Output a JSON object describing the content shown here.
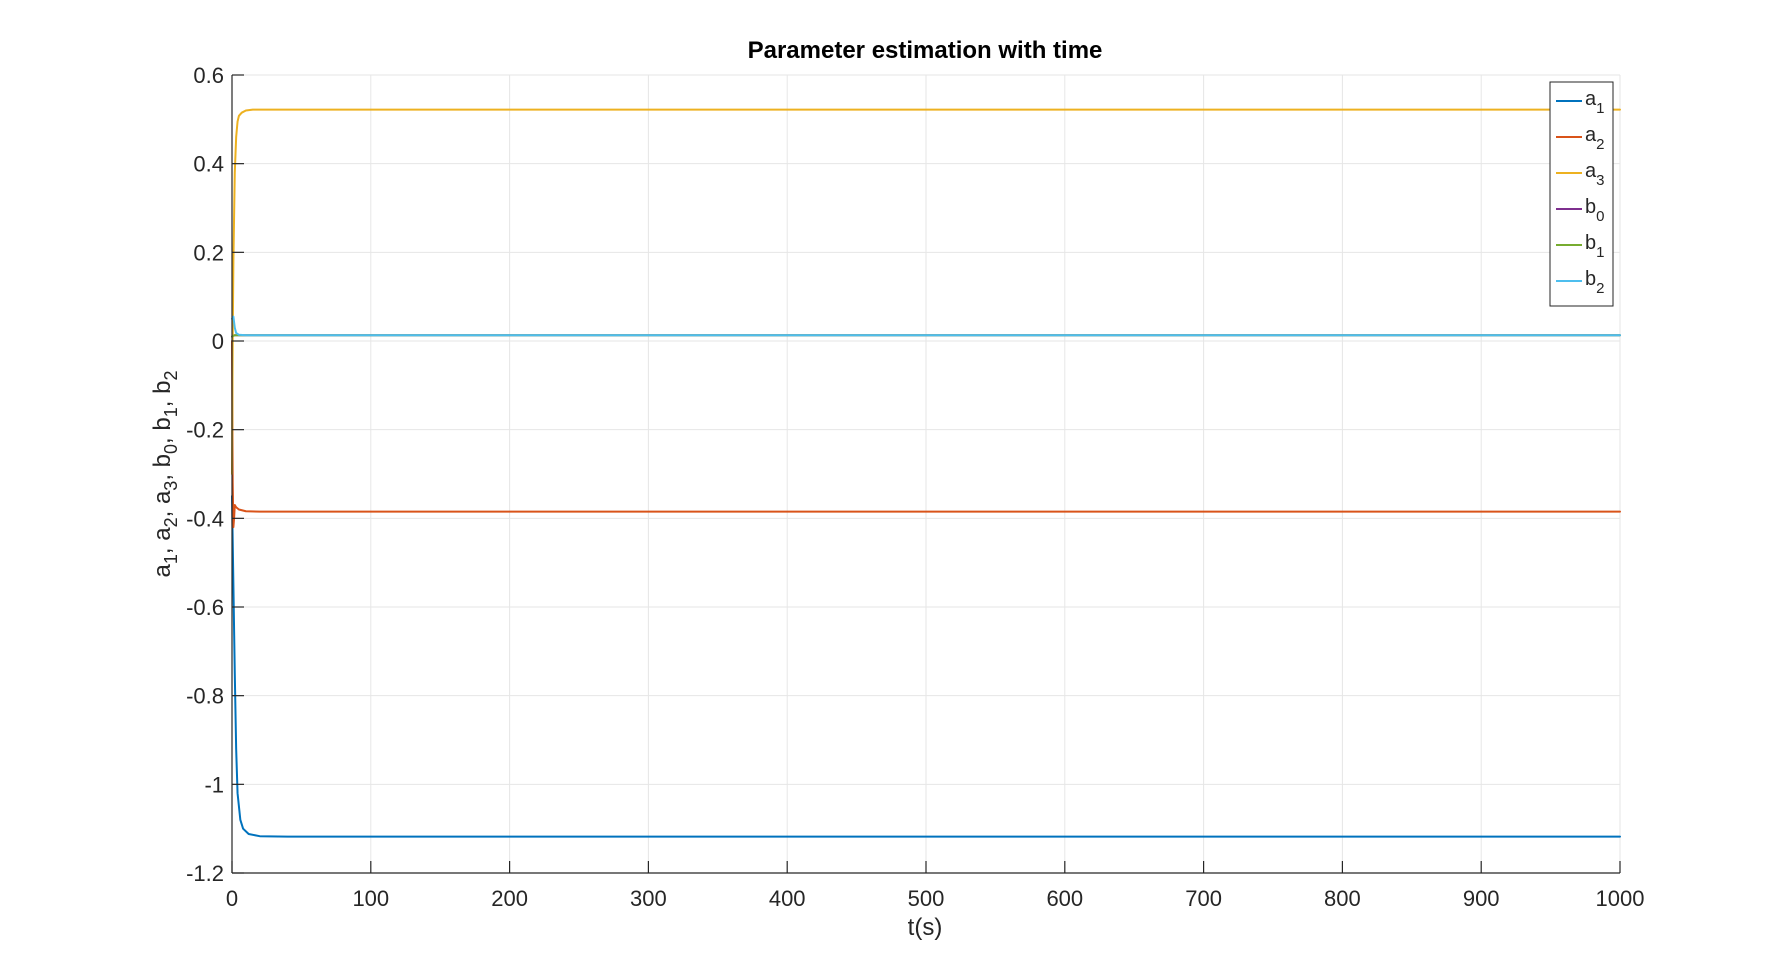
{
  "chart_data": {
    "type": "line",
    "title": "Parameter estimation with time",
    "xlabel": "t(s)",
    "ylabel": {
      "parts": [
        {
          "base": "a",
          "sub": "1"
        },
        {
          "base": "a",
          "sub": "2"
        },
        {
          "base": "a",
          "sub": "3"
        },
        {
          "base": "b",
          "sub": "0"
        },
        {
          "base": "b",
          "sub": "1"
        },
        {
          "base": "b",
          "sub": "2"
        }
      ],
      "separator": ", "
    },
    "xlim": [
      0,
      1000
    ],
    "ylim": [
      -1.2,
      0.6
    ],
    "xticks": [
      0,
      100,
      200,
      300,
      400,
      500,
      600,
      700,
      800,
      900,
      1000
    ],
    "xtick_labels": [
      "0",
      "100",
      "200",
      "300",
      "400",
      "500",
      "600",
      "700",
      "800",
      "900",
      "1000"
    ],
    "yticks": [
      0.6,
      0.4,
      0.2,
      0,
      -0.2,
      -0.4,
      -0.6,
      -0.8,
      -1,
      -1.2
    ],
    "ytick_labels": [
      "0.6",
      "0.4",
      "0.2",
      "0",
      "-0.2",
      "-0.4",
      "-0.6",
      "-0.8",
      "-1",
      "-1.2"
    ],
    "grid": true,
    "legend_position": "top-right",
    "series": [
      {
        "name": {
          "base": "a",
          "sub": "1"
        },
        "color": "#0072BD",
        "x": [
          0,
          1,
          2,
          3,
          4,
          6,
          8,
          12,
          20,
          40,
          100,
          1000
        ],
        "y": [
          -0.35,
          -0.55,
          -0.75,
          -0.92,
          -1.02,
          -1.08,
          -1.1,
          -1.112,
          -1.117,
          -1.118,
          -1.118,
          -1.118
        ]
      },
      {
        "name": {
          "base": "a",
          "sub": "2"
        },
        "color": "#D95319",
        "x": [
          0,
          0.5,
          1,
          1.5,
          2,
          3,
          5,
          10,
          20,
          50,
          1000
        ],
        "y": [
          0,
          -0.32,
          -0.42,
          -0.4,
          -0.37,
          -0.375,
          -0.38,
          -0.384,
          -0.385,
          -0.385,
          -0.385
        ]
      },
      {
        "name": {
          "base": "a",
          "sub": "3"
        },
        "color": "#EDB120",
        "x": [
          0,
          0.5,
          1,
          2,
          3,
          4,
          5,
          7,
          10,
          15,
          30,
          100,
          1000
        ],
        "y": [
          -0.3,
          0.0,
          0.18,
          0.38,
          0.46,
          0.495,
          0.508,
          0.515,
          0.52,
          0.522,
          0.522,
          0.522,
          0.522
        ]
      },
      {
        "name": {
          "base": "b",
          "sub": "0"
        },
        "color": "#7E2F8E",
        "x": [
          0,
          1,
          2,
          5,
          1000
        ],
        "y": [
          0.01,
          0.012,
          0.013,
          0.013,
          0.013
        ]
      },
      {
        "name": {
          "base": "b",
          "sub": "1"
        },
        "color": "#77AC30",
        "x": [
          0,
          1,
          2,
          5,
          1000
        ],
        "y": [
          0.01,
          0.012,
          0.013,
          0.013,
          0.013
        ]
      },
      {
        "name": {
          "base": "b",
          "sub": "2"
        },
        "color": "#4DBEEE",
        "x": [
          0,
          1,
          2,
          3,
          5,
          10,
          1000
        ],
        "y": [
          0.05,
          0.055,
          0.03,
          0.018,
          0.014,
          0.013,
          0.013
        ]
      }
    ]
  }
}
